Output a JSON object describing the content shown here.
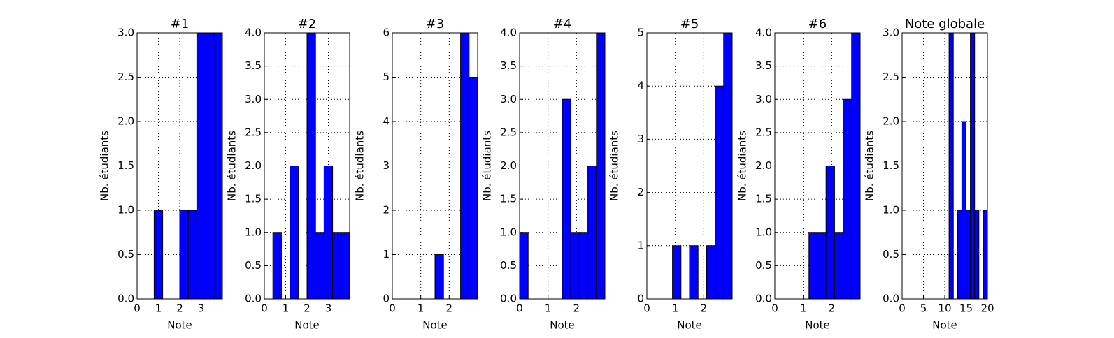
{
  "chart_data": [
    {
      "type": "histogram",
      "title": "#1",
      "xlabel": "Note",
      "ylabel": "Nb. étudiants",
      "color": "#0000ff",
      "grid": true,
      "bins": [
        0,
        0.4,
        0.8,
        1.2,
        1.6,
        2.0,
        2.4,
        2.8,
        3.2,
        3.6,
        4.0
      ],
      "values": [
        0,
        0,
        1,
        0,
        0,
        1,
        1,
        3,
        3,
        3
      ],
      "xlim": [
        0,
        4
      ],
      "xticks": [
        0,
        1,
        2,
        3
      ],
      "ylim": [
        0,
        3
      ],
      "yticks": [
        {
          "value": 0,
          "label": "0.0"
        },
        {
          "value": 0.5,
          "label": "0.5"
        },
        {
          "value": 1,
          "label": "1.0"
        },
        {
          "value": 1.5,
          "label": "1.5"
        },
        {
          "value": 2,
          "label": "2.0"
        },
        {
          "value": 2.5,
          "label": "2.5"
        },
        {
          "value": 3,
          "label": "3.0"
        }
      ]
    },
    {
      "type": "histogram",
      "title": "#2",
      "xlabel": "Note",
      "ylabel": "Nb. étudiants",
      "color": "#0000ff",
      "grid": true,
      "bins": [
        0,
        0.4,
        0.8,
        1.2,
        1.6,
        2.0,
        2.4,
        2.8,
        3.2,
        3.6,
        4.0
      ],
      "values": [
        0,
        1,
        0,
        2,
        0,
        4,
        1,
        2,
        1,
        1
      ],
      "xlim": [
        0,
        4
      ],
      "xticks": [
        0,
        1,
        2,
        3
      ],
      "ylim": [
        0,
        4
      ],
      "yticks": [
        {
          "value": 0,
          "label": "0.0"
        },
        {
          "value": 0.5,
          "label": "0.5"
        },
        {
          "value": 1,
          "label": "1.0"
        },
        {
          "value": 1.5,
          "label": "1.5"
        },
        {
          "value": 2,
          "label": "2.0"
        },
        {
          "value": 2.5,
          "label": "2.5"
        },
        {
          "value": 3,
          "label": "3.0"
        },
        {
          "value": 3.5,
          "label": "3.5"
        },
        {
          "value": 4,
          "label": "4.0"
        }
      ]
    },
    {
      "type": "histogram",
      "title": "#3",
      "xlabel": "Note",
      "ylabel": "Nb. étudiants",
      "color": "#0000ff",
      "grid": true,
      "bins": [
        0,
        0.3,
        0.6,
        0.9,
        1.2,
        1.5,
        1.8,
        2.1,
        2.4,
        2.7,
        3.0
      ],
      "values": [
        0,
        0,
        0,
        0,
        0,
        1,
        0,
        0,
        6,
        5
      ],
      "xlim": [
        0,
        3
      ],
      "xticks": [
        0,
        1,
        2
      ],
      "ylim": [
        0,
        6
      ],
      "yticks": [
        0,
        1,
        2,
        3,
        4,
        5,
        6
      ]
    },
    {
      "type": "histogram",
      "title": "#4",
      "xlabel": "Note",
      "ylabel": "Nb. étudiants",
      "color": "#0000ff",
      "grid": true,
      "bins": [
        0,
        0.3,
        0.6,
        0.9,
        1.2,
        1.5,
        1.8,
        2.1,
        2.4,
        2.7,
        3.0
      ],
      "values": [
        1,
        0,
        0,
        0,
        0,
        3,
        1,
        1,
        2,
        4
      ],
      "xlim": [
        0,
        3
      ],
      "xticks": [
        0,
        1,
        2
      ],
      "ylim": [
        0,
        4
      ],
      "yticks": [
        {
          "value": 0,
          "label": "0.0"
        },
        {
          "value": 0.5,
          "label": "0.5"
        },
        {
          "value": 1,
          "label": "1.0"
        },
        {
          "value": 1.5,
          "label": "1.5"
        },
        {
          "value": 2,
          "label": "2.0"
        },
        {
          "value": 2.5,
          "label": "2.5"
        },
        {
          "value": 3,
          "label": "3.0"
        },
        {
          "value": 3.5,
          "label": "3.5"
        },
        {
          "value": 4,
          "label": "4.0"
        }
      ]
    },
    {
      "type": "histogram",
      "title": "#5",
      "xlabel": "Note",
      "ylabel": "Nb. étudiants",
      "color": "#0000ff",
      "grid": true,
      "bins": [
        0,
        0.3,
        0.6,
        0.9,
        1.2,
        1.5,
        1.8,
        2.1,
        2.4,
        2.7,
        3.0
      ],
      "values": [
        0,
        0,
        0,
        1,
        0,
        1,
        0,
        1,
        4,
        5
      ],
      "xlim": [
        0,
        3
      ],
      "xticks": [
        0,
        1,
        2
      ],
      "ylim": [
        0,
        5
      ],
      "yticks": [
        0,
        1,
        2,
        3,
        4,
        5
      ]
    },
    {
      "type": "histogram",
      "title": "#6",
      "xlabel": "Note",
      "ylabel": "Nb. étudiants",
      "color": "#0000ff",
      "grid": true,
      "bins": [
        0,
        0.3,
        0.6,
        0.9,
        1.2,
        1.5,
        1.8,
        2.1,
        2.4,
        2.7,
        3.0
      ],
      "values": [
        0,
        0,
        0,
        0,
        1,
        1,
        2,
        1,
        3,
        4
      ],
      "xlim": [
        0,
        3
      ],
      "xticks": [
        0,
        1,
        2
      ],
      "ylim": [
        0,
        4
      ],
      "yticks": [
        {
          "value": 0,
          "label": "0.0"
        },
        {
          "value": 0.5,
          "label": "0.5"
        },
        {
          "value": 1,
          "label": "1.0"
        },
        {
          "value": 1.5,
          "label": "1.5"
        },
        {
          "value": 2,
          "label": "2.0"
        },
        {
          "value": 2.5,
          "label": "2.5"
        },
        {
          "value": 3,
          "label": "3.0"
        },
        {
          "value": 3.5,
          "label": "3.5"
        },
        {
          "value": 4,
          "label": "4.0"
        }
      ]
    },
    {
      "type": "histogram",
      "title": "Note globale",
      "xlabel": "Note",
      "ylabel": "Nb. étudiants",
      "color": "#0000ff",
      "grid": true,
      "bins": [
        0,
        1,
        2,
        3,
        4,
        5,
        6,
        7,
        8,
        9,
        10,
        11,
        12,
        13,
        14,
        15,
        16,
        17,
        18,
        19,
        20
      ],
      "values": [
        0,
        0,
        0,
        0,
        0,
        0,
        0,
        0,
        0,
        0,
        0,
        3,
        0,
        1,
        2,
        1,
        3,
        1,
        0,
        1
      ],
      "xlim": [
        0,
        20
      ],
      "xticks": [
        0,
        5,
        10,
        15,
        20
      ],
      "ylim": [
        0,
        3
      ],
      "yticks": [
        {
          "value": 0,
          "label": "0.0"
        },
        {
          "value": 0.5,
          "label": "0.5"
        },
        {
          "value": 1,
          "label": "1.0"
        },
        {
          "value": 1.5,
          "label": "1.5"
        },
        {
          "value": 2,
          "label": "2.0"
        },
        {
          "value": 2.5,
          "label": "2.5"
        },
        {
          "value": 3,
          "label": "3.0"
        }
      ]
    }
  ]
}
